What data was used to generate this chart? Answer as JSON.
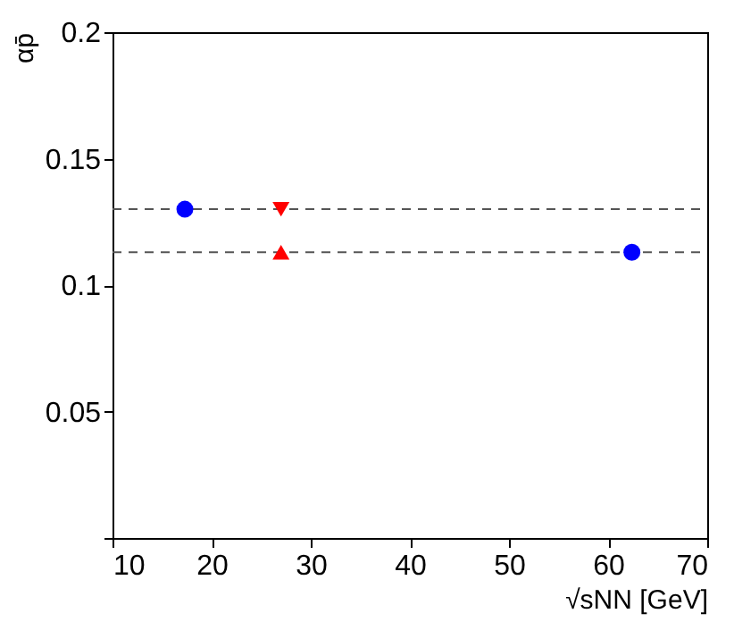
{
  "chart_data": {
    "type": "scatter",
    "xlabel": "√sNN [GeV]",
    "ylabel": "αp̄",
    "series": [
      {
        "color": "#0000ff",
        "marker": "circle",
        "x": [
          17.3,
          62.4
        ],
        "values": [
          0.13,
          0.113
        ]
      },
      {
        "color": "#ff0000",
        "marker": "triangle-down",
        "x": [
          27
        ],
        "values": [
          0.13
        ]
      },
      {
        "color": "#ff0000",
        "marker": "triangle",
        "x": [
          27
        ],
        "values": [
          0.113
        ]
      }
    ],
    "ref_lines": [
      {
        "axis": "y",
        "value": 0.13,
        "color": "#555555",
        "line_style": "dashed"
      },
      {
        "axis": "y",
        "value": 0.113,
        "color": "#555555",
        "line_style": "dashed"
      }
    ],
    "xlim": [
      10,
      70
    ],
    "xticks": [
      10,
      20,
      30,
      40,
      50,
      60,
      70
    ],
    "ylim": [
      0,
      0.2
    ],
    "yticks": [
      {
        "value": 0,
        "label": null
      },
      {
        "value": 0.05,
        "label": "0.05"
      },
      {
        "value": 0.1,
        "label": "0.1"
      },
      {
        "value": 0.15,
        "label": "0.15"
      },
      {
        "value": 0.2,
        "label": "0.2"
      }
    ],
    "grid": false
  }
}
